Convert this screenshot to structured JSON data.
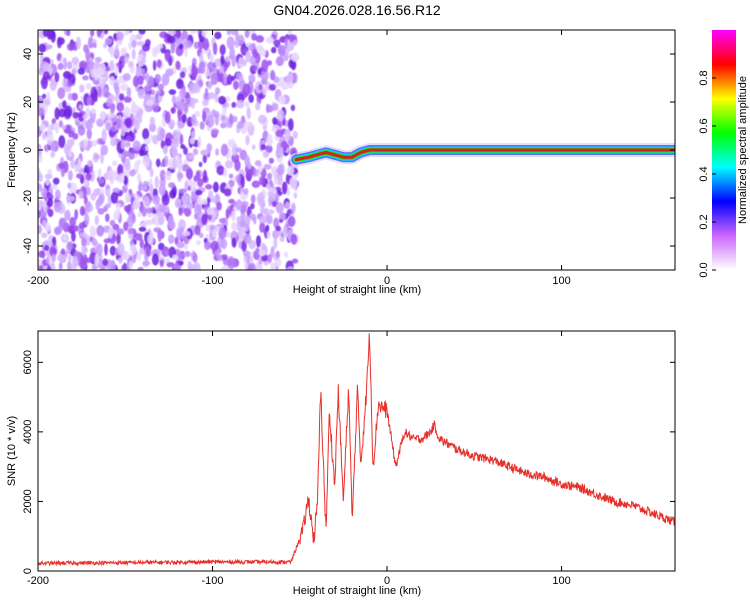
{
  "figure": {
    "title": "GN04.2026.028.16.56.R12"
  },
  "chart_data": [
    {
      "type": "heatmap",
      "xlabel": "Height of straight line (km)",
      "ylabel": "Frequency (Hz)",
      "xlim": [
        -200,
        165
      ],
      "ylim": [
        -50,
        50
      ],
      "xticks": [
        -200,
        -100,
        0,
        100
      ],
      "yticks": [
        -40,
        -20,
        0,
        20,
        40
      ],
      "noise_region_x": [
        -200,
        -52
      ],
      "signal_track": {
        "x": [
          -52,
          -45,
          -40,
          -35,
          -30,
          -25,
          -20,
          -15,
          -10,
          0,
          50,
          100,
          165
        ],
        "freq": [
          -4,
          -3,
          -2,
          -1,
          -2,
          -3,
          -3,
          -1,
          0,
          0,
          0,
          0,
          0
        ]
      },
      "colorbar": {
        "label": "Normalized spectral amplitude",
        "range": [
          0,
          1
        ],
        "ticks": [
          "0.0",
          "0.2",
          "0.4",
          "0.6",
          "0.8"
        ],
        "colors": [
          "#ffffff",
          "#cc66ff",
          "#0000ff",
          "#00ffff",
          "#00ff00",
          "#ffff00",
          "#ff0000",
          "#ff00ff"
        ]
      }
    },
    {
      "type": "line",
      "xlabel": "Height of straight line (km)",
      "ylabel": "SNR (10 * v/v)",
      "xlim": [
        -200,
        165
      ],
      "ylim": [
        0,
        6900
      ],
      "xticks": [
        -200,
        -100,
        0,
        100
      ],
      "yticks": [
        0,
        2000,
        4000,
        6000
      ],
      "color": "#e8302a",
      "series": [
        {
          "x": [
            -200,
            -150,
            -100,
            -55,
            -48,
            -45,
            -42,
            -40,
            -38,
            -35,
            -33,
            -30,
            -28,
            -25,
            -22,
            -20,
            -17,
            -15,
            -12,
            -10,
            -8,
            -5,
            0,
            5,
            10,
            15,
            20,
            25,
            27,
            30,
            40,
            50,
            60,
            70,
            80,
            90,
            100,
            110,
            120,
            130,
            140,
            150,
            160,
            165
          ],
          "y": [
            220,
            240,
            260,
            260,
            1200,
            2100,
            900,
            1800,
            5200,
            1100,
            4600,
            2400,
            5200,
            2000,
            5300,
            1400,
            5200,
            3100,
            5000,
            6800,
            3000,
            4800,
            4600,
            3000,
            4000,
            3800,
            3800,
            4000,
            4200,
            3800,
            3500,
            3300,
            3200,
            3000,
            2800,
            2700,
            2500,
            2400,
            2200,
            2000,
            1900,
            1700,
            1500,
            1400
          ]
        }
      ]
    }
  ]
}
